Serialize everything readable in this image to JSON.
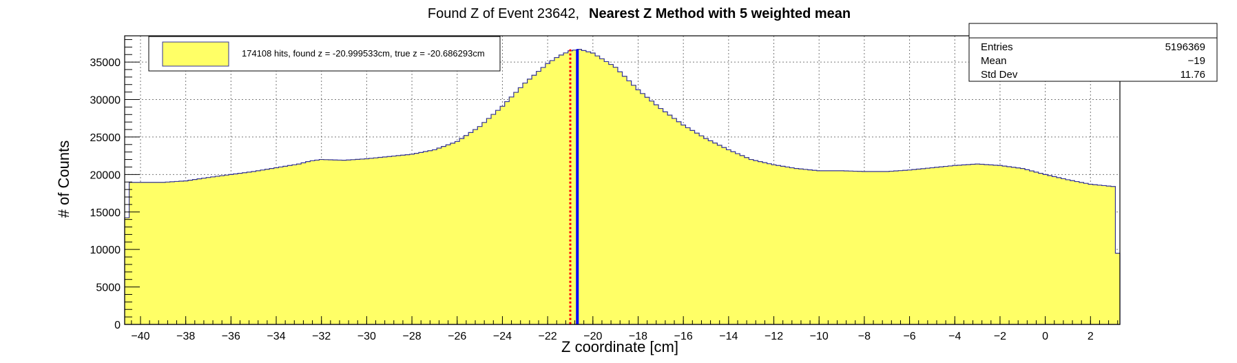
{
  "title": {
    "left": "Found Z of Event 23642,",
    "right": "Nearest Z Method with 5 weighted mean"
  },
  "colors": {
    "fill": "#ffff66",
    "line": "#303094",
    "blue_marker": "#0000ff",
    "red_marker": "#ff0000",
    "grid": "#777777"
  },
  "legend": {
    "entry": "174108 hits, found z = -20.999533cm, true z = -20.686293cm"
  },
  "stats": {
    "rows": [
      {
        "label": "Entries",
        "value": "5196369"
      },
      {
        "label": "Mean",
        "value": "−19"
      },
      {
        "label": "Std Dev",
        "value": "11.76"
      }
    ]
  },
  "chart_data": {
    "type": "histogram",
    "xlabel": "Z coordinate [cm]",
    "ylabel": "# of Counts",
    "xlim": [
      -40.7,
      3.3
    ],
    "ylim": [
      0,
      38500
    ],
    "x_ticks": [
      -40,
      -38,
      -36,
      -34,
      -32,
      -30,
      -28,
      -26,
      -24,
      -22,
      -20,
      -18,
      -16,
      -14,
      -12,
      -10,
      -8,
      -6,
      -4,
      -2,
      0,
      2
    ],
    "y_ticks": [
      0,
      5000,
      10000,
      15000,
      20000,
      25000,
      30000,
      35000
    ],
    "grid": true,
    "legend_position": "top-left",
    "stats_position": "top-right",
    "bin_width": 0.2,
    "profile_points": [
      [
        -40.7,
        9500
      ],
      [
        -40.5,
        18950
      ],
      [
        -40,
        18950
      ],
      [
        -39,
        18950
      ],
      [
        -38,
        19150
      ],
      [
        -37,
        19600
      ],
      [
        -36,
        20000
      ],
      [
        -35,
        20400
      ],
      [
        -34,
        20900
      ],
      [
        -33,
        21400
      ],
      [
        -32.5,
        21800
      ],
      [
        -32,
        22000
      ],
      [
        -31,
        21900
      ],
      [
        -30,
        22100
      ],
      [
        -29,
        22400
      ],
      [
        -28,
        22700
      ],
      [
        -27,
        23300
      ],
      [
        -26,
        24400
      ],
      [
        -25,
        26400
      ],
      [
        -24,
        29100
      ],
      [
        -23,
        32200
      ],
      [
        -22,
        34800
      ],
      [
        -21.5,
        35800
      ],
      [
        -21,
        36500
      ],
      [
        -20.6,
        36700
      ],
      [
        -20,
        36200
      ],
      [
        -19,
        34300
      ],
      [
        -18,
        31300
      ],
      [
        -17,
        28800
      ],
      [
        -16,
        26600
      ],
      [
        -15,
        24800
      ],
      [
        -14,
        23300
      ],
      [
        -13,
        22000
      ],
      [
        -12,
        21300
      ],
      [
        -11,
        20800
      ],
      [
        -10,
        20500
      ],
      [
        -9,
        20500
      ],
      [
        -8,
        20400
      ],
      [
        -7,
        20400
      ],
      [
        -6,
        20600
      ],
      [
        -5,
        20900
      ],
      [
        -4,
        21200
      ],
      [
        -3,
        21400
      ],
      [
        -2,
        21200
      ],
      [
        -1,
        20800
      ],
      [
        0,
        20000
      ],
      [
        1,
        19300
      ],
      [
        2,
        18700
      ],
      [
        3.0,
        18400
      ],
      [
        3.1,
        9500
      ]
    ],
    "markers": [
      {
        "name": "found z",
        "x": -20.999533,
        "style": "dotted",
        "color": "#ff0000"
      },
      {
        "name": "true z",
        "x": -20.686293,
        "style": "solid",
        "color": "#0000ff"
      }
    ]
  }
}
